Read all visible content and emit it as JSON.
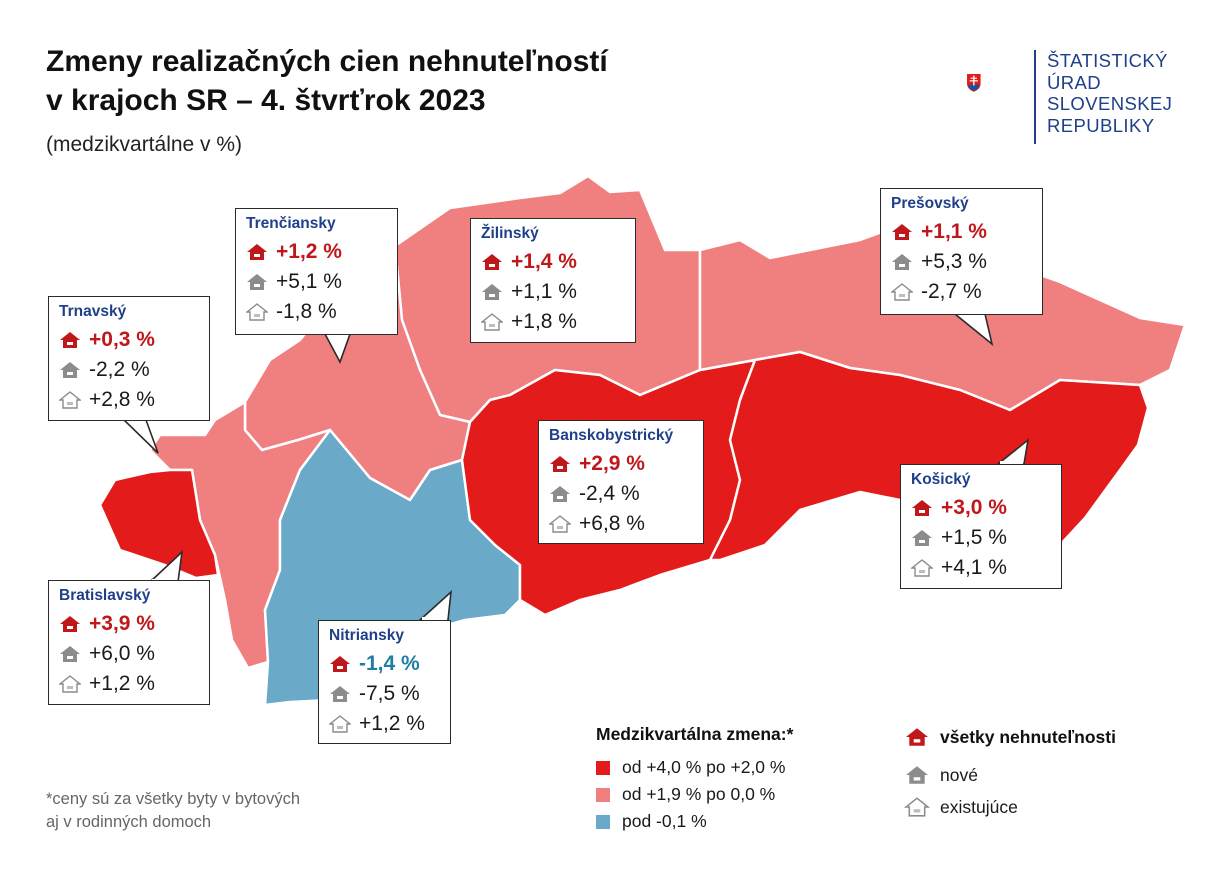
{
  "title_line1": "Zmeny realizačných cien nehnuteľností",
  "title_line2": "v krajoch SR – 4. štvrťrok 2023",
  "subtitle": "(medzikvartálne v %)",
  "logo": {
    "icon": "slovak-coat-of-arms",
    "line1": "ŠTATISTICKÝ",
    "line2": "ÚRAD",
    "line3": "SLOVENSKEJ",
    "line4": "REPUBLIKY"
  },
  "colors": {
    "high": "#e31b1b",
    "medium": "#f08080",
    "negative": "#6aaac8",
    "accent_red": "#c0171b",
    "accent_blue": "#1f7ea2",
    "brand_blue": "#1f3f8a"
  },
  "regions": {
    "trnavsky": {
      "name": "Trnavský",
      "all": "+0,3 %",
      "new": "-2,2 %",
      "existing": "+2,8 %",
      "category": "medium"
    },
    "trenciansky": {
      "name": "Trenčiansky",
      "all": "+1,2 %",
      "new": "+5,1 %",
      "existing": "-1,8 %",
      "category": "medium"
    },
    "zilinsky": {
      "name": "Žilinský",
      "all": "+1,4 %",
      "new": "+1,1 %",
      "existing": "+1,8 %",
      "category": "medium"
    },
    "presovsky": {
      "name": "Prešovský",
      "all": "+1,1 %",
      "new": "+5,3 %",
      "existing": "-2,7 %",
      "category": "medium"
    },
    "banskobystricky": {
      "name": "Banskobystrický",
      "all": "+2,9 %",
      "new": "-2,4 %",
      "existing": "+6,8 %",
      "category": "high"
    },
    "kosicky": {
      "name": "Košický",
      "all": "+3,0 %",
      "new": "+1,5 %",
      "existing": "+4,1 %",
      "category": "high"
    },
    "bratislavsky": {
      "name": "Bratislavský",
      "all": "+3,9 %",
      "new": "+6,0 %",
      "existing": "+1,2 %",
      "category": "high"
    },
    "nitriansky": {
      "name": "Nitriansky",
      "all": "-1,4 %",
      "new": "-7,5 %",
      "existing": "+1,2 %",
      "category": "negative"
    }
  },
  "legend": {
    "title": "Medzikvartálna zmena:*",
    "high": "od +4,0 % po +2,0 %",
    "medium": "od +1,9 % po 0,0 %",
    "negative": "pod -0,1 %",
    "all": "všetky nehnuteľnosti",
    "new": "nové",
    "existing": "existujúce"
  },
  "footnote_line1": "*ceny sú za všetky byty v bytových",
  "footnote_line2": "aj v rodinných domoch"
}
